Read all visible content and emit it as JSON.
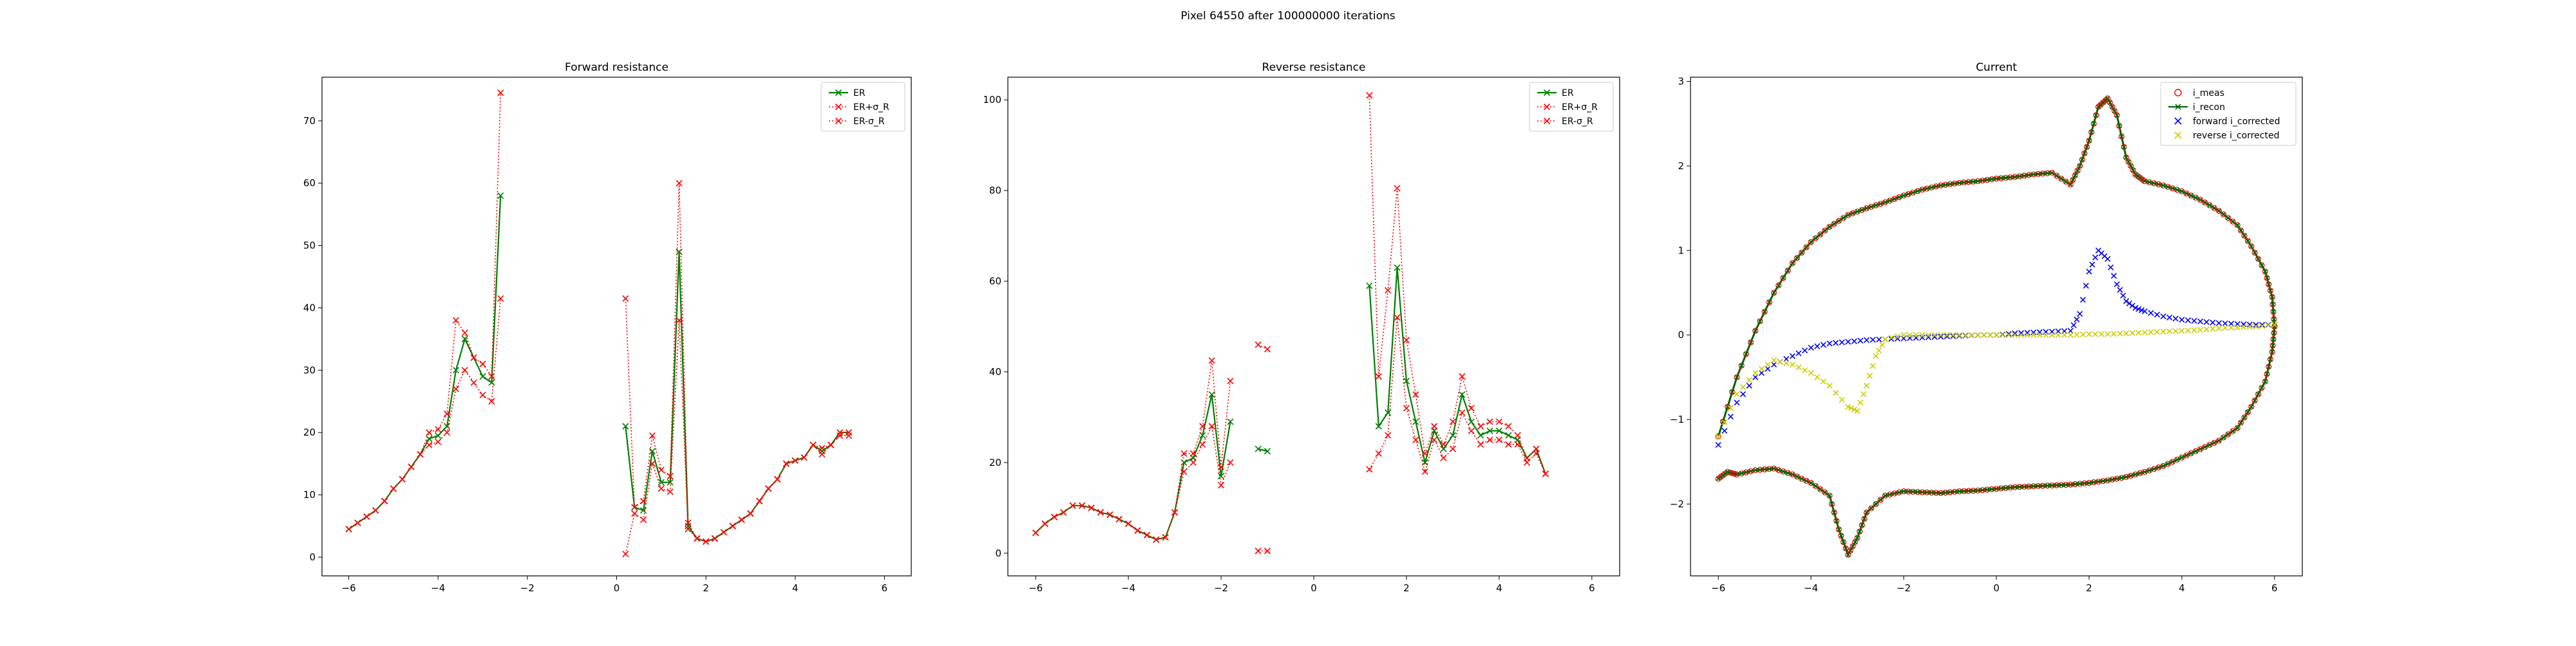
{
  "figure": {
    "suptitle": "Pixel 64550 after 100000000 iterations"
  },
  "colors": {
    "er": "#008000",
    "err": "#ff0000",
    "i_meas": "#ff0000",
    "i_recon": "#006400",
    "forward": "#0000ff",
    "reverse": "#cccc00"
  },
  "chart_data": [
    {
      "type": "line",
      "title": "Forward resistance",
      "xlabel": "",
      "ylabel": "",
      "xlim": [
        -6.6,
        6.6
      ],
      "ylim": [
        -3,
        77
      ],
      "xticks": [
        -6,
        -4,
        -2,
        0,
        2,
        4,
        6
      ],
      "yticks": [
        0,
        10,
        20,
        30,
        40,
        50,
        60,
        70
      ],
      "legend": {
        "position": "top-right",
        "entries": [
          "ER",
          "ER+σ_R",
          "ER-σ_R"
        ]
      },
      "x": [
        -6,
        -5.8,
        -5.6,
        -5.4,
        -5.2,
        -5,
        -4.8,
        -4.6,
        -4.4,
        -4.2,
        -4,
        -3.8,
        -3.6,
        -3.4,
        -3.2,
        -3,
        -2.8,
        -2.6,
        -2.4,
        -2.2,
        -2,
        -1.8,
        -1.6,
        -1.4,
        -1.2,
        -1,
        -0.8,
        -0.6,
        -0.4,
        -0.2,
        0,
        0.2,
        0.4,
        0.6,
        0.8,
        1,
        1.2,
        1.4,
        1.6,
        1.8,
        2,
        2.2,
        2.4,
        2.6,
        2.8,
        3,
        3.2,
        3.4,
        3.6,
        3.8,
        4,
        4.2,
        4.4,
        4.6,
        4.8,
        5,
        5.2,
        5.4,
        5.6,
        5.8,
        6
      ],
      "series": [
        {
          "name": "ER",
          "color": "#008000",
          "style": "solid",
          "values": [
            4.5,
            5.5,
            6.5,
            7.5,
            9,
            11,
            12.5,
            14.5,
            16.5,
            19,
            19.5,
            21,
            30,
            35,
            32,
            29,
            28,
            58,
            null,
            null,
            null,
            null,
            null,
            null,
            null,
            null,
            null,
            null,
            null,
            null,
            null,
            21,
            8,
            7.5,
            17,
            12,
            12,
            49,
            5,
            3,
            2.5,
            3,
            4,
            5,
            6,
            7,
            9,
            11,
            12.5,
            15,
            15.5,
            16,
            18,
            17,
            18,
            20,
            20,
            null,
            null,
            null,
            null
          ]
        },
        {
          "name": "ER+σ_R",
          "color": "#ff0000",
          "style": "dotted",
          "values": [
            4.5,
            5.5,
            6.5,
            7.5,
            9,
            11,
            12.5,
            14.5,
            16.5,
            20,
            20.5,
            23,
            38,
            36,
            32,
            31,
            29,
            74.5,
            null,
            null,
            null,
            null,
            null,
            null,
            null,
            null,
            null,
            null,
            null,
            null,
            null,
            41.5,
            8,
            9,
            19.5,
            14,
            13,
            60,
            5.5,
            3,
            2.5,
            3,
            4,
            5,
            6,
            7,
            9,
            11,
            12.5,
            15,
            15.5,
            16,
            18,
            17.5,
            18,
            20,
            20,
            null,
            null,
            null,
            null
          ]
        },
        {
          "name": "ER-σ_R",
          "color": "#ff0000",
          "style": "dotted",
          "values": [
            4.5,
            5.5,
            6.5,
            7.5,
            9,
            11,
            12.5,
            14.5,
            16.5,
            18,
            18.5,
            20,
            27,
            30,
            28,
            26,
            25,
            41.5,
            null,
            null,
            null,
            null,
            null,
            null,
            null,
            null,
            null,
            null,
            null,
            null,
            null,
            0.5,
            7,
            6,
            15,
            11,
            10.5,
            38,
            4.5,
            3,
            2.5,
            3,
            4,
            5,
            6,
            7,
            9,
            11,
            12.5,
            15,
            15.5,
            16,
            18,
            16.5,
            18,
            19.5,
            19.5,
            null,
            null,
            null,
            null
          ]
        }
      ]
    },
    {
      "type": "line",
      "title": "Reverse resistance",
      "xlabel": "",
      "ylabel": "",
      "xlim": [
        -6.6,
        6.6
      ],
      "ylim": [
        -5,
        105
      ],
      "xticks": [
        -6,
        -4,
        -2,
        0,
        2,
        4,
        6
      ],
      "yticks": [
        0,
        20,
        40,
        60,
        80,
        100
      ],
      "legend": {
        "position": "top-right",
        "entries": [
          "ER",
          "ER+σ_R",
          "ER-σ_R"
        ]
      },
      "x": [
        -6,
        -5.8,
        -5.6,
        -5.4,
        -5.2,
        -5,
        -4.8,
        -4.6,
        -4.4,
        -4.2,
        -4,
        -3.8,
        -3.6,
        -3.4,
        -3.2,
        -3,
        -2.8,
        -2.6,
        -2.4,
        -2.2,
        -2,
        -1.8,
        -1.6,
        -1.4,
        -1.2,
        -1,
        -0.8,
        -0.6,
        -0.4,
        -0.2,
        0,
        0.2,
        0.4,
        0.6,
        0.8,
        1,
        1.2,
        1.4,
        1.6,
        1.8,
        2,
        2.2,
        2.4,
        2.6,
        2.8,
        3,
        3.2,
        3.4,
        3.6,
        3.8,
        4,
        4.2,
        4.4,
        4.6,
        4.8,
        5,
        5.2,
        5.4,
        5.6,
        5.8,
        6
      ],
      "series": [
        {
          "name": "ER",
          "color": "#008000",
          "style": "solid",
          "values": [
            4.5,
            6.5,
            8,
            9,
            10.5,
            10.5,
            10,
            9,
            8.5,
            7.5,
            6.5,
            5,
            4,
            3,
            3.5,
            9,
            20,
            21,
            26,
            35,
            17,
            29,
            null,
            null,
            23,
            22.5,
            null,
            null,
            null,
            null,
            null,
            null,
            null,
            null,
            null,
            null,
            59,
            28,
            31,
            63,
            38,
            29,
            20,
            27,
            23,
            26,
            35,
            29,
            26,
            27,
            27,
            26,
            25,
            21,
            23,
            17.5,
            null,
            null,
            null,
            null,
            null
          ]
        },
        {
          "name": "ER+σ_R",
          "color": "#ff0000",
          "style": "dotted",
          "values": [
            4.5,
            6.5,
            8,
            9,
            10.5,
            10.5,
            10,
            9,
            8.5,
            7.5,
            6.5,
            5,
            4,
            3,
            3.5,
            9,
            22,
            22,
            28,
            42.5,
            19,
            38,
            null,
            null,
            46,
            45,
            null,
            null,
            null,
            null,
            null,
            null,
            null,
            null,
            null,
            null,
            101,
            39,
            58,
            80.5,
            47,
            35,
            22,
            28,
            24,
            29,
            39,
            32,
            28,
            29,
            29,
            28,
            26,
            21,
            23,
            17.5,
            null,
            null,
            null,
            null,
            null
          ]
        },
        {
          "name": "ER-σ_R",
          "color": "#ff0000",
          "style": "dotted",
          "values": [
            4.5,
            6.5,
            8,
            9,
            10.5,
            10.5,
            10,
            9,
            8.5,
            7.5,
            6.5,
            5,
            4,
            3,
            3.5,
            9,
            18,
            20,
            24,
            28,
            15,
            20,
            null,
            null,
            0.5,
            0.5,
            null,
            null,
            null,
            null,
            null,
            null,
            null,
            null,
            null,
            null,
            18.5,
            22,
            26,
            52,
            32,
            25,
            18,
            25,
            21,
            23,
            31,
            27,
            24,
            25,
            25,
            24,
            24,
            20,
            22,
            17.5,
            null,
            null,
            null,
            null,
            null
          ]
        }
      ]
    },
    {
      "type": "line",
      "title": "Current",
      "xlabel": "",
      "ylabel": "",
      "xlim": [
        -6.6,
        6.6
      ],
      "ylim": [
        -2.85,
        3.05
      ],
      "xticks": [
        -6,
        -4,
        -2,
        0,
        2,
        4,
        6
      ],
      "yticks": [
        -2,
        -1,
        0,
        1,
        2,
        3
      ],
      "legend": {
        "position": "top-right",
        "entries": [
          "i_meas",
          "i_recon",
          "forward i_corrected",
          "reverse i_corrected"
        ]
      },
      "loop_upper": {
        "x": [
          -6,
          -5.6,
          -5.2,
          -4.8,
          -4.4,
          -4,
          -3.6,
          -3.2,
          -2.8,
          -2.4,
          -2,
          -1.6,
          -1.2,
          -0.8,
          -0.4,
          0,
          0.4,
          0.8,
          1.2,
          1.6,
          1.8,
          2,
          2.2,
          2.4,
          2.6,
          2.8,
          3,
          3.2,
          3.6,
          4,
          4.4,
          4.8,
          5.2,
          5.5,
          5.8,
          5.95,
          6
        ],
        "y": [
          -1.2,
          -0.5,
          0.05,
          0.5,
          0.85,
          1.1,
          1.28,
          1.42,
          1.5,
          1.57,
          1.65,
          1.72,
          1.77,
          1.8,
          1.82,
          1.85,
          1.87,
          1.9,
          1.92,
          1.78,
          2.0,
          2.3,
          2.7,
          2.8,
          2.6,
          2.1,
          1.9,
          1.82,
          1.77,
          1.7,
          1.6,
          1.47,
          1.3,
          1.05,
          0.75,
          0.45,
          0.1
        ]
      },
      "loop_lower": {
        "x": [
          6,
          5.95,
          5.8,
          5.5,
          5.2,
          4.8,
          4.4,
          4,
          3.6,
          3.2,
          2.8,
          2.4,
          2,
          1.6,
          1.2,
          0.8,
          0.4,
          0,
          -0.4,
          -0.8,
          -1.2,
          -1.6,
          -2,
          -2.4,
          -2.8,
          -3,
          -3.2,
          -3.4,
          -3.6,
          -4,
          -4.4,
          -4.8,
          -5.2,
          -5.6,
          -5.8,
          -6
        ],
        "y": [
          0.1,
          -0.2,
          -0.55,
          -0.85,
          -1.1,
          -1.25,
          -1.35,
          -1.45,
          -1.55,
          -1.62,
          -1.68,
          -1.72,
          -1.75,
          -1.77,
          -1.78,
          -1.79,
          -1.8,
          -1.82,
          -1.84,
          -1.85,
          -1.87,
          -1.86,
          -1.85,
          -1.9,
          -2.1,
          -2.4,
          -2.6,
          -2.3,
          -1.9,
          -1.75,
          -1.65,
          -1.58,
          -1.6,
          -1.65,
          -1.62,
          -1.7
        ]
      },
      "forward_corrected": {
        "x": [
          -6,
          -5.6,
          -5.2,
          -4.8,
          -4.4,
          -4,
          -3.6,
          -3.2,
          -2.8,
          -2.4,
          -2,
          -1.6,
          -1.2,
          -0.8,
          -0.4,
          0,
          0.4,
          0.8,
          1.2,
          1.6,
          1.8,
          2,
          2.2,
          2.4,
          2.6,
          2.8,
          3,
          3.2,
          3.6,
          4,
          4.4,
          4.8,
          5.2,
          5.6,
          6
        ],
        "y": [
          -1.3,
          -0.8,
          -0.5,
          -0.35,
          -0.25,
          -0.15,
          -0.1,
          -0.08,
          -0.06,
          -0.05,
          -0.04,
          -0.03,
          -0.02,
          -0.01,
          0,
          0,
          0.02,
          0.03,
          0.04,
          0.05,
          0.25,
          0.75,
          1.0,
          0.9,
          0.6,
          0.4,
          0.32,
          0.28,
          0.22,
          0.18,
          0.16,
          0.14,
          0.13,
          0.12,
          0.12
        ]
      },
      "reverse_corrected": {
        "x": [
          -6,
          -5.6,
          -5.2,
          -4.8,
          -4.4,
          -4,
          -3.6,
          -3.2,
          -3,
          -2.8,
          -2.6,
          -2.4,
          -2,
          -1.6,
          -1.2,
          -0.8,
          -0.4,
          0,
          0.4,
          0.8,
          1.2,
          1.6,
          2,
          2.4,
          2.8,
          3.2,
          3.6,
          4,
          4.4,
          4.8,
          5.2,
          5.6,
          6
        ],
        "y": [
          -1.2,
          -0.7,
          -0.45,
          -0.3,
          -0.35,
          -0.45,
          -0.6,
          -0.85,
          -0.9,
          -0.6,
          -0.25,
          -0.05,
          0,
          0,
          0,
          0,
          0,
          0,
          0,
          0,
          0,
          0,
          0.01,
          0.01,
          0.02,
          0.03,
          0.04,
          0.05,
          0.06,
          0.08,
          0.09,
          0.1,
          0.12
        ]
      }
    }
  ]
}
